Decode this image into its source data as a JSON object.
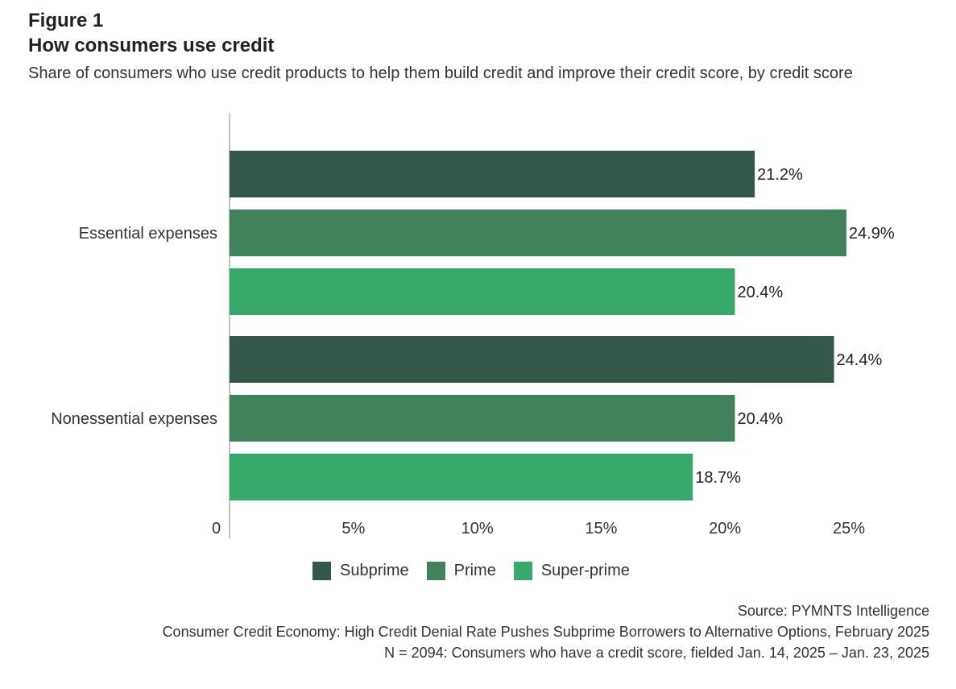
{
  "header": {
    "figure_label": "Figure 1",
    "title": "How consumers use credit",
    "subtitle": "Share of consumers who use credit products to help them build credit and improve their credit score, by credit score"
  },
  "chart_data": {
    "type": "bar",
    "orientation": "horizontal",
    "categories": [
      "Essential expenses",
      "Nonessential expenses"
    ],
    "series": [
      {
        "name": "Subprime",
        "color": "#33584a",
        "values": [
          21.2,
          24.4
        ],
        "labels": [
          "21.2%",
          "24.4%"
        ]
      },
      {
        "name": "Prime",
        "color": "#41825c",
        "values": [
          24.9,
          20.4
        ],
        "labels": [
          "24.9%",
          "20.4%"
        ]
      },
      {
        "name": "Super-prime",
        "color": "#38a96b",
        "values": [
          20.4,
          18.7
        ],
        "labels": [
          "20.4%",
          "18.7%"
        ]
      }
    ],
    "xlim": [
      0,
      25
    ],
    "x_ticks": [
      0,
      5,
      10,
      15,
      20,
      25
    ],
    "x_tick_labels": [
      "0",
      "5%",
      "10%",
      "15%",
      "20%",
      "25%"
    ],
    "grid": false,
    "legend_position": "bottom"
  },
  "footer": {
    "source": "Source: PYMNTS Intelligence",
    "report": "Consumer Credit Economy: High Credit Denial Rate Pushes Subprime Borrowers to Alternative Options, February 2025",
    "sample": "N = 2094: Consumers who have a credit score, fielded Jan. 14, 2025 – Jan. 23, 2025"
  }
}
